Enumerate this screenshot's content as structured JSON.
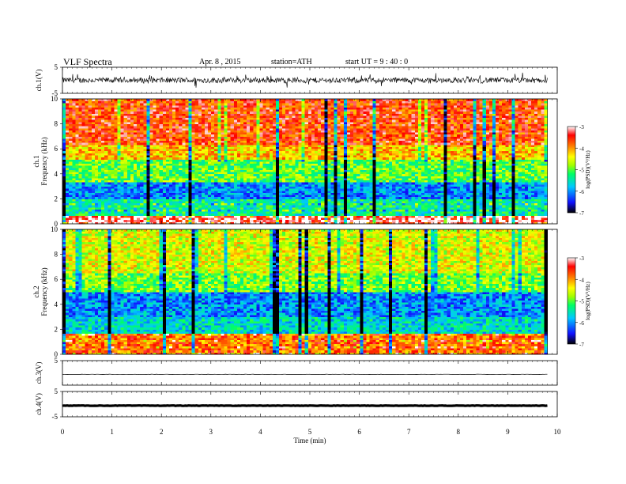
{
  "header": {
    "title": "VLF  Spectra",
    "date": "Apr. 8  , 2015",
    "station": "station=ATH",
    "start_time": "start  UT  =   9  : 40 : 0"
  },
  "colors": {
    "scale": [
      "#000000",
      "#1010ff",
      "#00c8ff",
      "#00ff64",
      "#a0ff00",
      "#ffff00",
      "#ff8000",
      "#ff0000",
      "#ffffff"
    ]
  },
  "chart_data": [
    {
      "id": "ch1-waveform",
      "type": "line",
      "ylabel": "ch.1(V)",
      "ylim": [
        -5,
        5
      ],
      "yticks": [
        "5",
        "-5"
      ],
      "xlim": [
        0,
        10
      ],
      "style": "noisy-trace",
      "amplitude_v": 1.3
    },
    {
      "id": "ch1-spectrogram",
      "type": "heatmap",
      "ylabel_lines": [
        "ch.1",
        "Frequency  (kHz)"
      ],
      "ylim": [
        0,
        10
      ],
      "yticks": [
        "0",
        "2",
        "4",
        "6",
        "8",
        "10"
      ],
      "xlim": [
        0,
        10
      ],
      "data_xmax": 9.8,
      "colorbar": {
        "label": "log(PSD)(V²/Hz)",
        "range": [
          -7,
          -3
        ],
        "ticks": [
          "-3",
          "-4",
          "-5",
          "-6",
          "-7"
        ]
      },
      "bands_khz_logpsd": [
        [
          0,
          0.6,
          -3.2
        ],
        [
          0.6,
          2.0,
          -5.4
        ],
        [
          2.0,
          3.4,
          -6.0
        ],
        [
          3.4,
          5.2,
          -5.0
        ],
        [
          5.2,
          6.4,
          -4.2
        ],
        [
          6.4,
          10,
          -3.6
        ]
      ]
    },
    {
      "id": "ch2-spectrogram",
      "type": "heatmap",
      "ylabel_lines": [
        "ch.2",
        "Frequency  (kHz)"
      ],
      "ylim": [
        0,
        10
      ],
      "yticks": [
        "0",
        "2",
        "4",
        "6",
        "8",
        "10"
      ],
      "xlim": [
        0,
        10
      ],
      "data_xmax": 9.8,
      "colorbar": {
        "label": "log(PSD)(V²/Hz)",
        "range": [
          -7,
          -3
        ],
        "ticks": [
          "-3",
          "-4",
          "-5",
          "-6",
          "-7"
        ]
      },
      "bands_khz_logpsd": [
        [
          0,
          1.6,
          -3.8
        ],
        [
          1.6,
          3.0,
          -5.6
        ],
        [
          3.0,
          5.0,
          -6.0
        ],
        [
          5.0,
          6.5,
          -4.9
        ],
        [
          6.5,
          10,
          -4.5
        ]
      ]
    },
    {
      "id": "ch3-waveform",
      "type": "line",
      "ylabel": "ch.3(V)",
      "ylim": [
        -5,
        5
      ],
      "yticks": [
        "5"
      ],
      "xlim": [
        0,
        10
      ],
      "style": "flat-trace",
      "level_v": -0.6
    },
    {
      "id": "ch4-waveform",
      "type": "line",
      "ylabel": "ch.4(V)",
      "ylim": [
        -5,
        5
      ],
      "yticks": [
        "5",
        "-5"
      ],
      "xlim": [
        0,
        10
      ],
      "style": "thick-flat",
      "level_v": -0.6
    }
  ],
  "x_axis": {
    "label": "Time  (min)",
    "ticks": [
      "0",
      "1",
      "2",
      "3",
      "4",
      "5",
      "6",
      "7",
      "8",
      "9",
      "10"
    ]
  }
}
